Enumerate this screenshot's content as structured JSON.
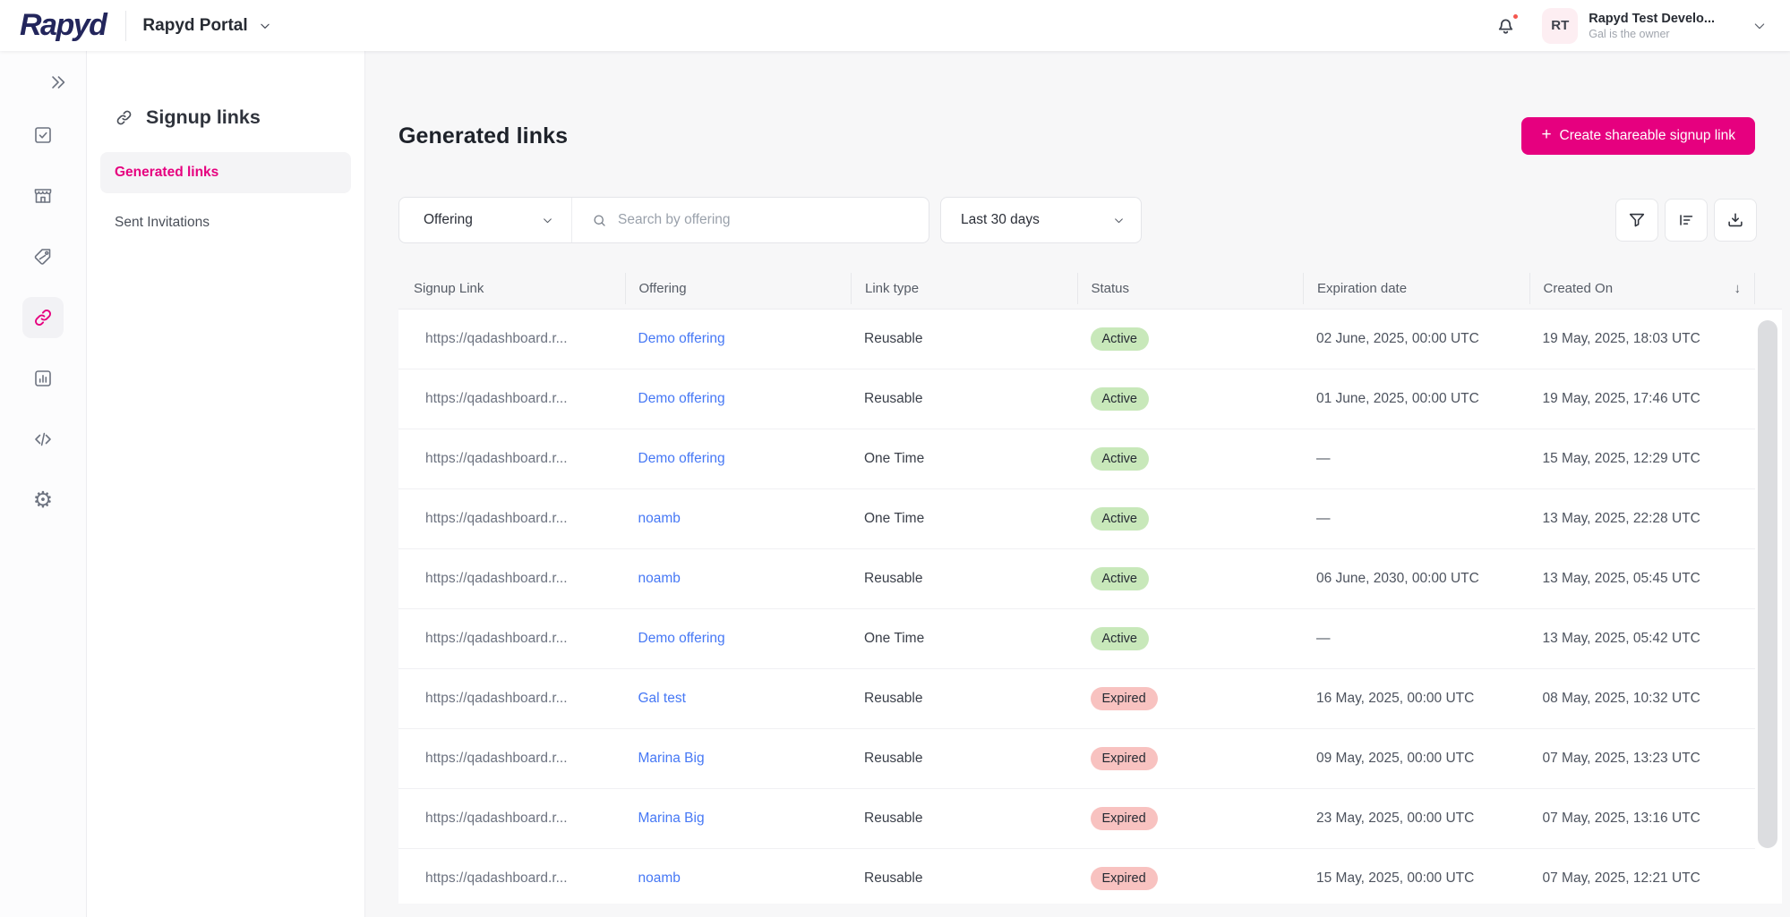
{
  "topbar": {
    "logo": "Rapyd",
    "portal_label": "Rapyd Portal",
    "account": {
      "initials": "RT",
      "name": "Rapyd Test Develo...",
      "subtitle": "Gal is the owner"
    }
  },
  "sidebar": {
    "items": [
      {
        "icon": "double-chevron-right-icon",
        "active": false
      },
      {
        "icon": "checkbox-icon",
        "active": false
      },
      {
        "icon": "storefront-icon",
        "active": false
      },
      {
        "icon": "tag-icon",
        "active": false
      },
      {
        "icon": "link-icon",
        "active": true
      },
      {
        "icon": "bar-chart-icon",
        "active": false
      },
      {
        "icon": "code-icon",
        "active": false
      },
      {
        "icon": "gear-icon",
        "active": false
      }
    ]
  },
  "subnav": {
    "title": "Signup links",
    "items": [
      {
        "label": "Generated links",
        "active": true
      },
      {
        "label": "Sent Invitations",
        "active": false
      }
    ]
  },
  "main": {
    "title": "Generated links",
    "create_button": {
      "plus": "+",
      "label": "Create shareable signup link"
    },
    "filters": {
      "offering_dropdown": "Offering",
      "search_placeholder": "Search by offering",
      "date_range": "Last 30 days",
      "action_icons": [
        "filter-icon",
        "sort-icon",
        "download-icon"
      ]
    },
    "table": {
      "columns": [
        "Signup Link",
        "Offering",
        "Link type",
        "Status",
        "Expiration date",
        "Created On"
      ],
      "sort_column": "Created On",
      "sort_indicator": "↓",
      "rows": [
        {
          "signup_link": "https://qadashboard.r...",
          "offering": "Demo offering",
          "link_type": "Reusable",
          "status": "Active",
          "expiration": "02 June, 2025, 00:00 UTC",
          "created": "19 May, 2025, 18:03 UTC"
        },
        {
          "signup_link": "https://qadashboard.r...",
          "offering": "Demo offering",
          "link_type": "Reusable",
          "status": "Active",
          "expiration": "01 June, 2025, 00:00 UTC",
          "created": "19 May, 2025, 17:46 UTC"
        },
        {
          "signup_link": "https://qadashboard.r...",
          "offering": "Demo offering",
          "link_type": "One Time",
          "status": "Active",
          "expiration": "—",
          "created": "15 May, 2025, 12:29 UTC"
        },
        {
          "signup_link": "https://qadashboard.r...",
          "offering": "noamb",
          "link_type": "One Time",
          "status": "Active",
          "expiration": "—",
          "created": "13 May, 2025, 22:28 UTC"
        },
        {
          "signup_link": "https://qadashboard.r...",
          "offering": "noamb",
          "link_type": "Reusable",
          "status": "Active",
          "expiration": "06 June, 2030, 00:00 UTC",
          "created": "13 May, 2025, 05:45 UTC"
        },
        {
          "signup_link": "https://qadashboard.r...",
          "offering": "Demo offering",
          "link_type": "One Time",
          "status": "Active",
          "expiration": "—",
          "created": "13 May, 2025, 05:42 UTC"
        },
        {
          "signup_link": "https://qadashboard.r...",
          "offering": "Gal test",
          "link_type": "Reusable",
          "status": "Expired",
          "expiration": "16 May, 2025, 00:00 UTC",
          "created": "08 May, 2025, 10:32 UTC"
        },
        {
          "signup_link": "https://qadashboard.r...",
          "offering": "Marina Big",
          "link_type": "Reusable",
          "status": "Expired",
          "expiration": "09 May, 2025, 00:00 UTC",
          "created": "07 May, 2025, 13:23 UTC"
        },
        {
          "signup_link": "https://qadashboard.r...",
          "offering": "Marina Big",
          "link_type": "Reusable",
          "status": "Expired",
          "expiration": "23 May, 2025, 00:00 UTC",
          "created": "07 May, 2025, 13:16 UTC"
        },
        {
          "signup_link": "https://qadashboard.r...",
          "offering": "noamb",
          "link_type": "Reusable",
          "status": "Expired",
          "expiration": "15 May, 2025, 00:00 UTC",
          "created": "07 May, 2025, 12:21 UTC"
        }
      ]
    }
  },
  "colors": {
    "accent_pink": "#E6007F",
    "brand_navy": "#23265C",
    "link_blue": "#4678F5",
    "badge_active_bg": "#C8E8BA",
    "badge_expired_bg": "#F8C2C0",
    "page_bg": "#F7F7F8"
  }
}
